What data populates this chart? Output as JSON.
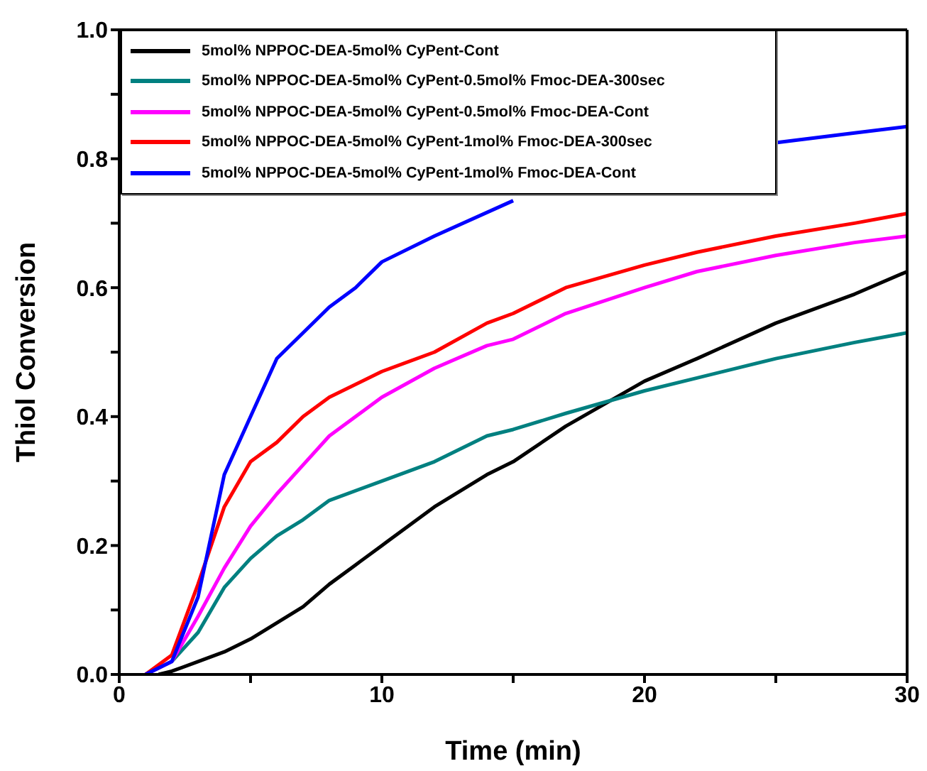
{
  "chart_data": {
    "type": "line",
    "xlabel": "Time (min)",
    "ylabel": "Thiol Conversion",
    "xlim": [
      0,
      30
    ],
    "xticks": [
      0,
      {
        "value": 5,
        "label": null
      },
      10,
      {
        "value": 15,
        "label": null
      },
      20,
      {
        "value": 25,
        "label": null
      },
      30
    ],
    "ylim": [
      0,
      1.0
    ],
    "yticks": [
      {
        "value": 0,
        "label": "0.0"
      },
      {
        "value": 0.1,
        "label": null
      },
      0.2,
      {
        "value": 0.3,
        "label": null
      },
      0.4,
      {
        "value": 0.5,
        "label": null
      },
      0.6,
      {
        "value": 0.7,
        "label": null
      },
      0.8,
      {
        "value": 0.9,
        "label": null
      },
      {
        "value": 1.0,
        "label": "1.0"
      }
    ],
    "grid": false,
    "legend": "top left",
    "marker": "none",
    "line_style": "solid",
    "series": [
      {
        "name": "5mol% NPPOC-DEA-5mol% CyPent-Cont",
        "color": "#000000",
        "x": [
          1.5,
          2,
          3,
          4,
          5,
          6,
          7,
          8,
          9,
          10,
          12,
          14,
          15,
          17,
          20,
          22,
          25,
          28,
          30
        ],
        "values": [
          0,
          0.005,
          0.02,
          0.035,
          0.055,
          0.08,
          0.105,
          0.14,
          0.17,
          0.2,
          0.26,
          0.31,
          0.33,
          0.385,
          0.455,
          0.49,
          0.545,
          0.59,
          0.625
        ]
      },
      {
        "name": "5mol% NPPOC-DEA-5mol% CyPent-0.5mol% Fmoc-DEA-300sec",
        "color": "#008080",
        "x": [
          1,
          2,
          3,
          4,
          5,
          6,
          7,
          8,
          10,
          12,
          14,
          15,
          17,
          20,
          22,
          25,
          28,
          30
        ],
        "values": [
          0,
          0.02,
          0.065,
          0.135,
          0.18,
          0.215,
          0.24,
          0.27,
          0.3,
          0.33,
          0.37,
          0.38,
          0.405,
          0.44,
          0.46,
          0.49,
          0.515,
          0.53
        ]
      },
      {
        "name": "5mol% NPPOC-DEA-5mol% CyPent-0.5mol% Fmoc-DEA-Cont",
        "color": "#ff00ff",
        "x": [
          1,
          2,
          3,
          4,
          5,
          6,
          7,
          8,
          10,
          12,
          14,
          15,
          17,
          20,
          22,
          25,
          28,
          30
        ],
        "values": [
          0,
          0.02,
          0.09,
          0.165,
          0.23,
          0.28,
          0.325,
          0.37,
          0.43,
          0.475,
          0.51,
          0.52,
          0.56,
          0.6,
          0.625,
          0.65,
          0.67,
          0.68
        ]
      },
      {
        "name": "5mol% NPPOC-DEA-5mol% CyPent-1mol% Fmoc-DEA-300sec",
        "color": "#ff0000",
        "x": [
          1,
          2,
          3,
          4,
          5,
          6,
          7,
          8,
          10,
          12,
          14,
          15,
          17,
          20,
          22,
          25,
          28,
          30
        ],
        "values": [
          0,
          0.03,
          0.14,
          0.26,
          0.33,
          0.36,
          0.4,
          0.43,
          0.47,
          0.5,
          0.545,
          0.56,
          0.6,
          0.635,
          0.655,
          0.68,
          0.7,
          0.715
        ]
      },
      {
        "name": "5mol% NPPOC-DEA-5mol% CyPent-1mol% Fmoc-DEA-Cont",
        "color": "#0000ff",
        "x": [
          1,
          2,
          3,
          4,
          5,
          6,
          7,
          8,
          9,
          10,
          12,
          15,
          18,
          20,
          22,
          25,
          28,
          30
        ],
        "values": [
          0,
          0.02,
          0.12,
          0.31,
          0.4,
          0.49,
          0.53,
          0.57,
          0.6,
          0.64,
          0.68,
          0.735,
          null,
          null,
          null,
          0.825,
          0.84,
          0.85
        ]
      }
    ]
  }
}
